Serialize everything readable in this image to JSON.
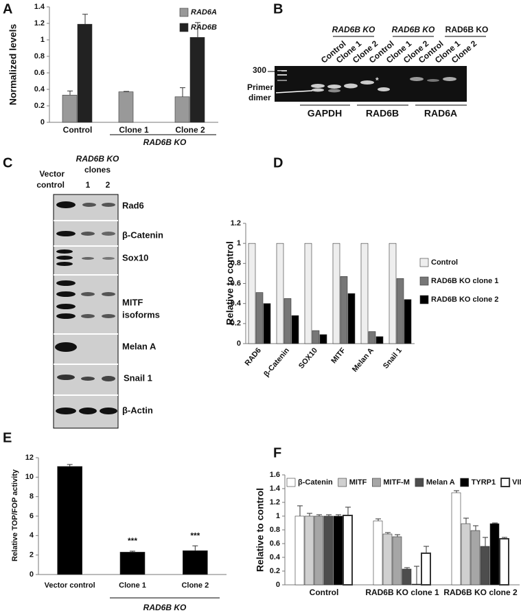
{
  "panel_labels": [
    "A",
    "B",
    "C",
    "D",
    "E",
    "F"
  ],
  "chart_data": [
    {
      "type": "bar",
      "ylabel": "Normalized levels",
      "categories": [
        "Control",
        "Clone  1",
        "Clone  2"
      ],
      "series": [
        {
          "name": "RAD6A",
          "color": "#999999",
          "values": [
            0.33,
            0.37,
            0.31
          ],
          "errors": [
            0.05,
            0.005,
            0.11
          ]
        },
        {
          "name": "RAD6B",
          "color": "#222222",
          "values": [
            1.19,
            null,
            1.03
          ],
          "errors": [
            0.12,
            null,
            0.18
          ]
        }
      ],
      "ylim": [
        0,
        1.4
      ],
      "yticks": [
        0,
        0.2,
        0.4,
        0.6,
        0.8,
        1,
        1.2,
        1.4
      ],
      "grid": false,
      "legend": "upper right",
      "group_label": "RAD6B KO"
    },
    {
      "type": "bar",
      "ylabel": "Relative to control",
      "categories": [
        "RAD6",
        "β-Catenin",
        "SOX10",
        "MITF",
        "Melan A",
        "Snail 1"
      ],
      "series": [
        {
          "name": "Control",
          "color": "#eeeeee",
          "values": [
            1,
            1,
            1,
            1,
            1,
            1
          ]
        },
        {
          "name": "RAD6B KO clone 1",
          "color": "#777777",
          "values": [
            0.51,
            0.45,
            0.13,
            0.67,
            0.12,
            0.65
          ]
        },
        {
          "name": "RAD6B KO clone 2",
          "color": "#000000",
          "values": [
            0.4,
            0.28,
            0.09,
            0.5,
            0.07,
            0.44
          ]
        }
      ],
      "ylim": [
        0,
        1.2
      ],
      "yticks": [
        0,
        0.2,
        0.4,
        0.6,
        0.8,
        1,
        1.2
      ],
      "grid": false,
      "legend": "right"
    },
    {
      "type": "bar",
      "ylabel": "Relative TOP/FOP activity",
      "categories": [
        "Vector  control",
        "Clone 1",
        "Clone 2"
      ],
      "values": [
        11.1,
        2.3,
        2.45
      ],
      "errors": [
        0.2,
        0.1,
        0.5
      ],
      "color": "#000000",
      "significance": [
        null,
        "***",
        "***"
      ],
      "ylim": [
        0,
        12
      ],
      "yticks": [
        0,
        2,
        4,
        6,
        8,
        10,
        12
      ],
      "grid": false,
      "group_label": "RAD6B KO"
    },
    {
      "type": "bar",
      "ylabel": "Relative to control",
      "categories": [
        "Control",
        "RAD6B KO clone 1",
        "RAD6B KO clone 2"
      ],
      "series": [
        {
          "name": "β-Catenin",
          "color": "#ffffff",
          "values": [
            1,
            0.93,
            1.34
          ],
          "errors": [
            0.15,
            0.03,
            0.03
          ]
        },
        {
          "name": "MITF",
          "color": "#d0d0d0",
          "values": [
            1,
            0.74,
            0.89
          ],
          "errors": [
            0.04,
            0.02,
            0.08
          ]
        },
        {
          "name": "MITF-M",
          "color": "#a6a6a6",
          "values": [
            1,
            0.7,
            0.79
          ],
          "errors": [
            0.02,
            0.03,
            0.07
          ]
        },
        {
          "name": "Melan A",
          "color": "#4d4d4d",
          "values": [
            1,
            0.23,
            0.56
          ],
          "errors": [
            0.02,
            0.02,
            0.13
          ]
        },
        {
          "name": "TYRP1",
          "color": "#000000",
          "values": [
            1,
            0.01,
            0.89
          ],
          "errors": [
            0.02,
            0.26,
            0.01
          ]
        },
        {
          "name": "VIM",
          "color": "#ffffff",
          "values": [
            1.01,
            0.46,
            0.67
          ],
          "errors": [
            0.12,
            0.1,
            0.02
          ]
        }
      ],
      "ylim": [
        0,
        1.6
      ],
      "yticks": [
        0,
        0.2,
        0.4,
        0.6,
        0.8,
        1,
        1.2,
        1.4,
        1.6
      ],
      "grid": false,
      "legend": "top"
    }
  ],
  "gel": {
    "size_marker": "300",
    "primer_dimer": [
      "Primer",
      "dimer"
    ],
    "asterisk": "*",
    "lanes": [
      "Control",
      "Clone 1",
      "Clone 2",
      "Control",
      "Clone 1",
      "Clone 2",
      "Control",
      "Clone 1",
      "Clone 2"
    ],
    "group_headers": [
      "RAD6B KO",
      "RAD6B KO",
      "RAD6B KO"
    ],
    "genes": [
      "GAPDH",
      "RAD6B",
      "RAD6A"
    ]
  },
  "blot": {
    "header": [
      "RAD6B KO",
      "clones"
    ],
    "vector": [
      "Vector",
      "control"
    ],
    "lanes": [
      "1",
      "2"
    ],
    "bands": [
      [
        "Rad6"
      ],
      [
        "β-Catenin"
      ],
      [
        "Sox10"
      ],
      [
        "MITF",
        "isoforms"
      ],
      [
        "Melan A"
      ],
      [
        "Snail 1"
      ],
      [
        "β-Actin"
      ]
    ]
  }
}
